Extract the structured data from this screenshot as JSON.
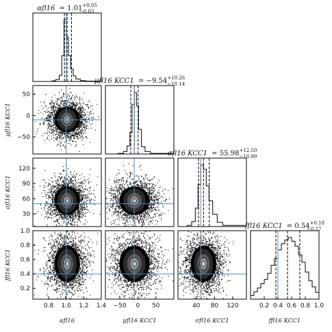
{
  "chart_data": {
    "type": "corner",
    "parameters": [
      {
        "key": "alpha",
        "title_symbol": "αfl16",
        "title_value": "= 1.01",
        "title_err_plus": "+0.05",
        "title_err_minus": "−0.03",
        "axis_label": "αfl16",
        "range": [
          0.62,
          1.4
        ],
        "ticks": [
          "0.8",
          "1.0",
          "1.2",
          "1.4"
        ],
        "tick_values": [
          0.8,
          1.0,
          1.2,
          1.4
        ],
        "truth": 1.0,
        "median": 1.01,
        "lo": 0.98,
        "hi": 1.06,
        "hist": [
          {
            "x": 0.62,
            "h": 0.0
          },
          {
            "x": 0.84,
            "h": 0.01
          },
          {
            "x": 0.88,
            "h": 0.03
          },
          {
            "x": 0.92,
            "h": 0.1
          },
          {
            "x": 0.95,
            "h": 0.42
          },
          {
            "x": 0.975,
            "h": 1.0
          },
          {
            "x": 1.0,
            "h": 0.72
          },
          {
            "x": 1.025,
            "h": 0.42
          },
          {
            "x": 1.05,
            "h": 0.2
          },
          {
            "x": 1.08,
            "h": 0.09
          },
          {
            "x": 1.11,
            "h": 0.04
          },
          {
            "x": 1.16,
            "h": 0.015
          },
          {
            "x": 1.22,
            "h": 0.005
          },
          {
            "x": 1.4,
            "h": 0.0
          }
        ]
      },
      {
        "key": "mu",
        "title_symbol": "μfl16 KCC1",
        "title_value": "= −9.54",
        "title_err_plus": "+10.26",
        "title_err_minus": "−10.14",
        "axis_label": "μfl16 KCC1",
        "range": [
          -90,
          100
        ],
        "ticks": [
          "−50",
          "0",
          "50"
        ],
        "tick_values": [
          -50,
          0,
          50
        ],
        "ticks_y": [
          "50",
          "0",
          "−50"
        ],
        "tick_values_y": [
          50,
          0,
          -50
        ],
        "range_y": [
          -90,
          70
        ],
        "truth": -10,
        "median": -9.54,
        "lo": -19.68,
        "hi": 0.72,
        "hist": [
          {
            "x": -90,
            "h": 0.0
          },
          {
            "x": -55,
            "h": 0.01
          },
          {
            "x": -40,
            "h": 0.04
          },
          {
            "x": -30,
            "h": 0.13
          },
          {
            "x": -22,
            "h": 0.35
          },
          {
            "x": -16,
            "h": 0.8
          },
          {
            "x": -10,
            "h": 1.0
          },
          {
            "x": -4,
            "h": 0.78
          },
          {
            "x": 2,
            "h": 0.4
          },
          {
            "x": 10,
            "h": 0.12
          },
          {
            "x": 20,
            "h": 0.04
          },
          {
            "x": 35,
            "h": 0.01
          },
          {
            "x": 100,
            "h": 0.0
          }
        ]
      },
      {
        "key": "sigma",
        "title_symbol": "σfl16 KCC1",
        "title_value": "= 55.98",
        "title_err_plus": "+12.50",
        "title_err_minus": "−10.99",
        "axis_label": "σfl16 KCC1",
        "range": [
          0,
          150
        ],
        "ticks": [
          "40",
          "80",
          "120"
        ],
        "tick_values": [
          40,
          80,
          120
        ],
        "ticks_y": [
          "120",
          "90",
          "60",
          "30"
        ],
        "tick_values_y": [
          120,
          90,
          60,
          30
        ],
        "range_y": [
          5,
          140
        ],
        "truth": 50,
        "median": 55.98,
        "lo": 44.99,
        "hi": 68.48,
        "hist": [
          {
            "x": 0,
            "h": 0.0
          },
          {
            "x": 20,
            "h": 0.02
          },
          {
            "x": 30,
            "h": 0.08
          },
          {
            "x": 38,
            "h": 0.3
          },
          {
            "x": 44,
            "h": 0.68
          },
          {
            "x": 50,
            "h": 1.0
          },
          {
            "x": 56,
            "h": 0.93
          },
          {
            "x": 62,
            "h": 0.66
          },
          {
            "x": 68,
            "h": 0.42
          },
          {
            "x": 76,
            "h": 0.2
          },
          {
            "x": 86,
            "h": 0.07
          },
          {
            "x": 98,
            "h": 0.02
          },
          {
            "x": 150,
            "h": 0.0
          }
        ]
      },
      {
        "key": "f",
        "title_symbol": "ffl16 KCC1",
        "title_value": "= 0.54",
        "title_err_plus": "+0.18",
        "title_err_minus": "−0.17",
        "axis_label": "ffl16 KCC1",
        "range": [
          0,
          1.0
        ],
        "ticks": [
          "0.2",
          "0.4",
          "0.6",
          "0.8",
          "1.0"
        ],
        "tick_values": [
          0.2,
          0.4,
          0.6,
          0.8,
          1.0
        ],
        "ticks_y": [
          "1.0",
          "0.8",
          "0.6",
          "0.4",
          "0.2"
        ],
        "tick_values_y": [
          1.0,
          0.8,
          0.6,
          0.4,
          0.2
        ],
        "range_y": [
          0.05,
          1.0
        ],
        "truth": 0.4,
        "median": 0.54,
        "lo": 0.37,
        "hi": 0.72,
        "hist": [
          {
            "x": 0.0,
            "h": 0.06
          },
          {
            "x": 0.05,
            "h": 0.12
          },
          {
            "x": 0.1,
            "h": 0.18
          },
          {
            "x": 0.15,
            "h": 0.25
          },
          {
            "x": 0.2,
            "h": 0.32
          },
          {
            "x": 0.25,
            "h": 0.42
          },
          {
            "x": 0.3,
            "h": 0.55
          },
          {
            "x": 0.35,
            "h": 0.66
          },
          {
            "x": 0.4,
            "h": 0.8
          },
          {
            "x": 0.45,
            "h": 0.9
          },
          {
            "x": 0.5,
            "h": 0.96
          },
          {
            "x": 0.55,
            "h": 1.0
          },
          {
            "x": 0.6,
            "h": 0.94
          },
          {
            "x": 0.65,
            "h": 0.86
          },
          {
            "x": 0.7,
            "h": 0.72
          },
          {
            "x": 0.75,
            "h": 0.6
          },
          {
            "x": 0.8,
            "h": 0.44
          },
          {
            "x": 0.85,
            "h": 0.3
          },
          {
            "x": 0.9,
            "h": 0.2
          },
          {
            "x": 0.95,
            "h": 0.11
          },
          {
            "x": 1.0,
            "h": 0.06
          }
        ]
      }
    ],
    "truth_color": "#4c8fc4",
    "hist_color": "#000000",
    "quantile_style": "dashed",
    "grid": false
  }
}
